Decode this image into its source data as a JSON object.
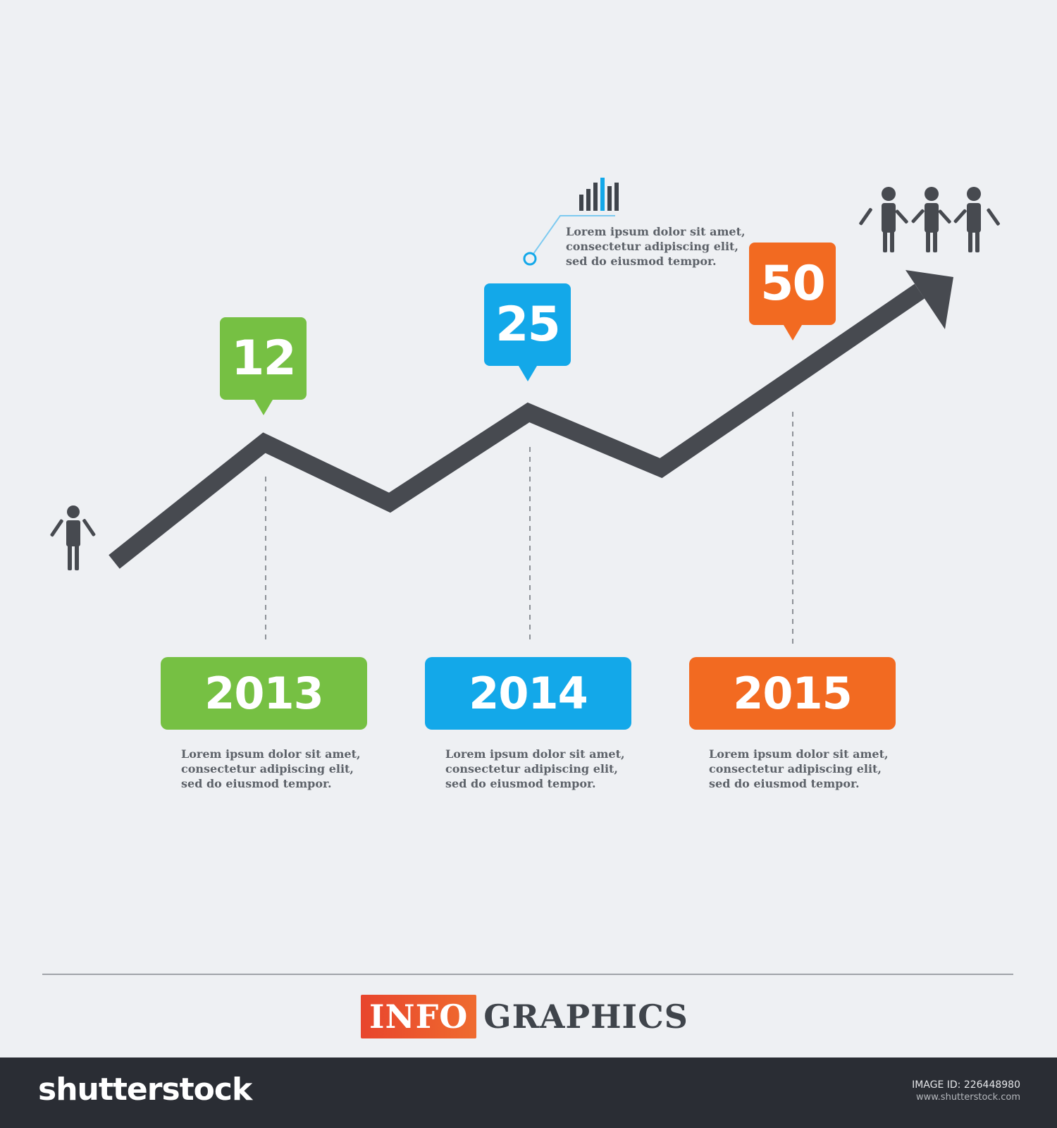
{
  "values": [
    {
      "label": "12",
      "year": "2013",
      "color": "#76c043"
    },
    {
      "label": "25",
      "year": "2014",
      "color": "#13a8e9"
    },
    {
      "label": "50",
      "year": "2015",
      "color": "#f26a21"
    }
  ],
  "captions": {
    "top_note": [
      "Lorem ipsum dolor sit amet,",
      "consectetur adipiscing elit,",
      "sed do eiusmod tempor."
    ],
    "note_2013": [
      "Lorem ipsum dolor sit amet,",
      "consectetur adipiscing elit,",
      "sed do eiusmod tempor."
    ],
    "note_2014": [
      "Lorem ipsum dolor sit amet,",
      "consectetur adipiscing elit,",
      "sed do eiusmod tempor."
    ],
    "note_2015": [
      "Lorem ipsum dolor sit amet,",
      "consectetur adipiscing elit,",
      "sed do eiusmod tempor."
    ]
  },
  "brand": {
    "info": "INFO",
    "graphics": "GRAPHICS"
  },
  "footer": {
    "site": "shutterstock",
    "image_id": "IMAGE ID: 226448980",
    "url": "www.shutterstock.com"
  },
  "colors": {
    "line": "#474a50",
    "dash": "#8d9197",
    "text": "#5d6269"
  },
  "icons": {
    "single_person": "person-icon",
    "group_people": "group-of-people-icon",
    "bar_chart": "bar-chart-icon"
  }
}
